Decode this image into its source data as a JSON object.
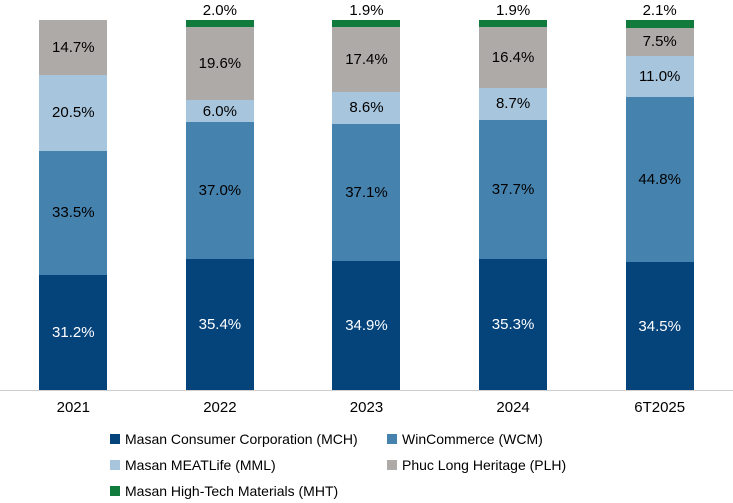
{
  "chart_data": {
    "type": "bar",
    "stacked": true,
    "orientation": "vertical",
    "title": "",
    "xlabel": "",
    "ylabel": "",
    "ylim": [
      0,
      100
    ],
    "grid": false,
    "legend_position": "bottom",
    "value_suffix": "%",
    "categories": [
      "2021",
      "2022",
      "2023",
      "2024",
      "6T2025"
    ],
    "series": [
      {
        "name": "Masan Consumer Corporation (MCH)",
        "color": "#05437b",
        "label_color": "#ffffff",
        "label_position": "inside",
        "values": [
          31.2,
          35.4,
          34.9,
          35.3,
          34.5
        ]
      },
      {
        "name": "WinCommerce (WCM)",
        "color": "#4682ae",
        "label_color": "#000000",
        "label_position": "inside",
        "values": [
          33.5,
          37.0,
          37.1,
          37.7,
          44.8
        ]
      },
      {
        "name": "Masan MEATLife (MML)",
        "color": "#a7c5dc",
        "label_color": "#000000",
        "label_position": "inside",
        "values": [
          20.5,
          6.0,
          8.6,
          8.7,
          11.0
        ]
      },
      {
        "name": "Phuc Long Heritage (PLH)",
        "color": "#aeaaa8",
        "label_color": "#000000",
        "label_position": "inside",
        "values": [
          14.7,
          19.6,
          17.4,
          16.4,
          7.5
        ]
      },
      {
        "name": "Masan High-Tech Materials (MHT)",
        "color": "#117a3d",
        "label_color": "#000000",
        "label_position": "above",
        "values": [
          null,
          2.0,
          1.9,
          1.9,
          2.1
        ]
      }
    ],
    "axis_line_color": "#cfcecd"
  }
}
